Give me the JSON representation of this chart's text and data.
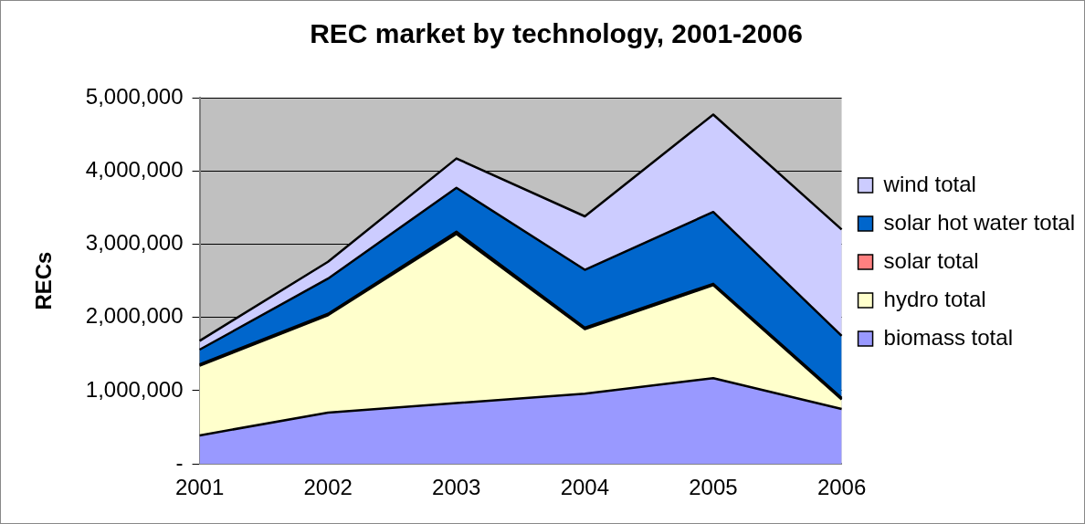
{
  "chart_data": {
    "type": "area",
    "title": "REC market by technology, 2001-2006",
    "ylabel": "RECs",
    "categories": [
      "2001",
      "2002",
      "2003",
      "2004",
      "2005",
      "2006"
    ],
    "stacked": true,
    "series": [
      {
        "name": "biomass total",
        "color": "#9999ff",
        "values": [
          390000,
          700000,
          830000,
          960000,
          1170000,
          750000
        ]
      },
      {
        "name": "hydro total",
        "color": "#ffffcc",
        "values": [
          950000,
          1330000,
          2310000,
          880000,
          1270000,
          130000
        ]
      },
      {
        "name": "solar total",
        "color": "#ff8080",
        "values": [
          20000,
          20000,
          30000,
          20000,
          20000,
          20000
        ]
      },
      {
        "name": "solar hot water total",
        "color": "#0066cc",
        "values": [
          200000,
          480000,
          600000,
          790000,
          980000,
          850000
        ]
      },
      {
        "name": "wind total",
        "color": "#ccccff",
        "values": [
          120000,
          230000,
          400000,
          730000,
          1330000,
          1450000
        ]
      }
    ],
    "ylim": [
      0,
      5000000
    ],
    "yticks": [
      {
        "value": 0,
        "label": "-"
      },
      {
        "value": 1000000,
        "label": "1,000,000"
      },
      {
        "value": 2000000,
        "label": "2,000,000"
      },
      {
        "value": 3000000,
        "label": "3,000,000"
      },
      {
        "value": 4000000,
        "label": "4,000,000"
      },
      {
        "value": 5000000,
        "label": "5,000,000"
      }
    ],
    "grid": "y",
    "legend": "right"
  }
}
